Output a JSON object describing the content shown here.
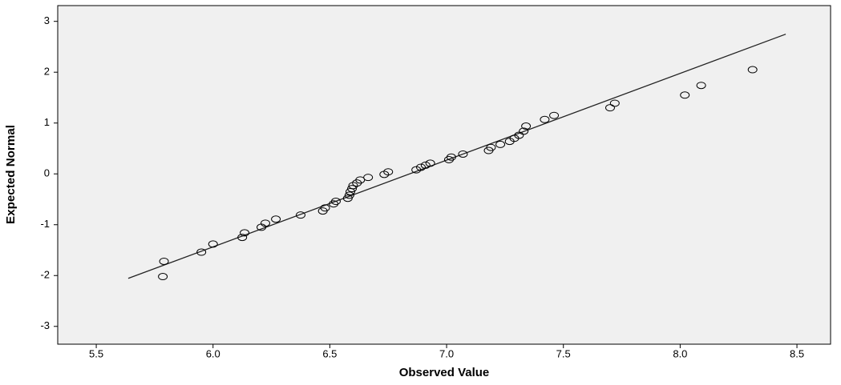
{
  "chart_data": {
    "type": "scatter",
    "x_label": "Observed Value",
    "y_label": "Expected Normal",
    "x": [
      5.785,
      5.79,
      5.95,
      6.0,
      6.125,
      6.135,
      6.207,
      6.224,
      6.269,
      6.375,
      6.47,
      6.48,
      6.516,
      6.526,
      6.577,
      6.584,
      6.588,
      6.595,
      6.6,
      6.616,
      6.63,
      6.664,
      6.733,
      6.75,
      6.87,
      6.89,
      6.91,
      6.93,
      7.01,
      7.02,
      7.07,
      7.18,
      7.19,
      7.23,
      7.27,
      7.29,
      7.31,
      7.33,
      7.34,
      7.42,
      7.46,
      7.7,
      7.72,
      8.02,
      8.09,
      8.31
    ],
    "values": [
      -2.02,
      -1.72,
      -1.54,
      -1.38,
      -1.25,
      -1.16,
      -1.05,
      -0.97,
      -0.89,
      -0.81,
      -0.73,
      -0.67,
      -0.59,
      -0.54,
      -0.48,
      -0.42,
      -0.35,
      -0.29,
      -0.23,
      -0.18,
      -0.12,
      -0.07,
      -0.01,
      0.04,
      0.08,
      0.13,
      0.17,
      0.21,
      0.28,
      0.33,
      0.39,
      0.46,
      0.52,
      0.58,
      0.64,
      0.7,
      0.76,
      0.84,
      0.94,
      1.07,
      1.15,
      1.3,
      1.39,
      1.55,
      1.74,
      2.05
    ],
    "color": "#000000",
    "reference_line": {
      "x": [
        5.637,
        8.452
      ],
      "y": [
        -2.055,
        2.748
      ]
    },
    "xlim": [
      5.335,
      8.644
    ],
    "ylim": [
      -3.35,
      3.31
    ],
    "xticks": [
      5.5,
      {
        "value": 6,
        "label": "6.0"
      },
      6.5,
      {
        "value": 7,
        "label": "7.0"
      },
      7.5,
      {
        "value": 8,
        "label": "8.0"
      },
      8.5
    ],
    "yticks": [
      -3,
      -2,
      -1,
      0,
      1,
      2,
      3
    ]
  }
}
